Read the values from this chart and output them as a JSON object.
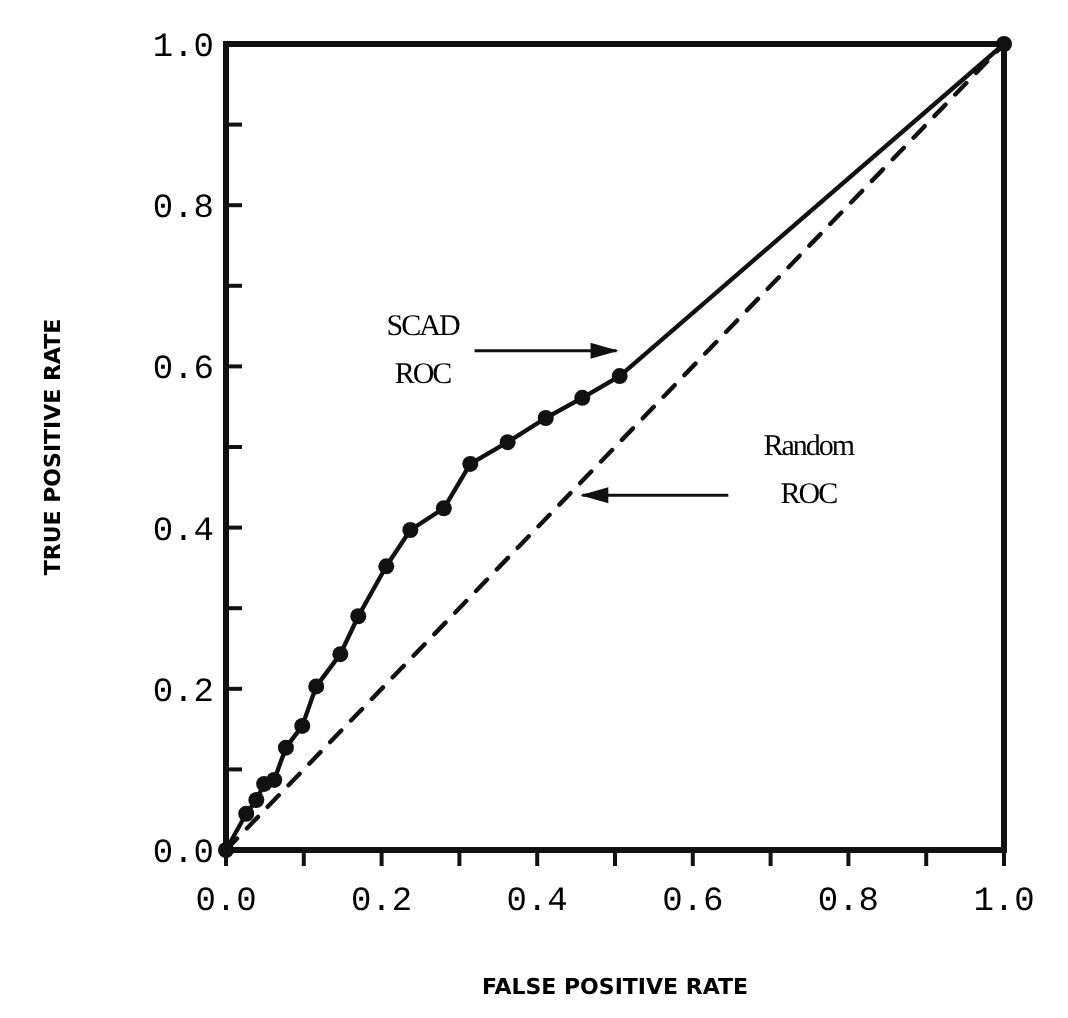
{
  "chart_data": {
    "type": "line",
    "xlabel": "FALSE POSITIVE RATE",
    "ylabel": "TRUE POSITIVE RATE",
    "xlim": [
      0,
      1
    ],
    "ylim": [
      0,
      1
    ],
    "xticks": [
      {
        "value": 0,
        "label": "0.0"
      },
      {
        "value": 0.1,
        "label": null
      },
      {
        "value": 0.2,
        "label": "0.2"
      },
      {
        "value": 0.3,
        "label": null
      },
      {
        "value": 0.4,
        "label": "0.4"
      },
      {
        "value": 0.5,
        "label": null
      },
      {
        "value": 0.6,
        "label": "0.6"
      },
      {
        "value": 0.7,
        "label": null
      },
      {
        "value": 0.8,
        "label": "0.8"
      },
      {
        "value": 0.9,
        "label": null
      },
      {
        "value": 1,
        "label": "1.0"
      }
    ],
    "yticks": [
      {
        "value": 0,
        "label": "0.0"
      },
      {
        "value": 0.1,
        "label": null
      },
      {
        "value": 0.2,
        "label": "0.2"
      },
      {
        "value": 0.3,
        "label": null
      },
      {
        "value": 0.4,
        "label": "0.4"
      },
      {
        "value": 0.5,
        "label": null
      },
      {
        "value": 0.6,
        "label": "0.6"
      },
      {
        "value": 0.7,
        "label": null
      },
      {
        "value": 0.8,
        "label": "0.8"
      },
      {
        "value": 0.9,
        "label": null
      },
      {
        "value": 1,
        "label": "1.0"
      }
    ],
    "series": [
      {
        "color": "#111111",
        "marker": "circle",
        "line_style": "solid",
        "x": [
          0,
          0.026,
          0.039,
          0.049,
          0.062,
          0.077,
          0.098,
          0.116,
          0.147,
          0.17,
          0.206,
          0.237,
          0.28,
          0.314,
          0.362,
          0.411,
          0.458,
          0.506,
          1
        ],
        "values": [
          0,
          0.045,
          0.062,
          0.082,
          0.087,
          0.127,
          0.154,
          0.203,
          0.243,
          0.29,
          0.352,
          0.397,
          0.424,
          0.479,
          0.506,
          0.536,
          0.561,
          0.588,
          1
        ]
      },
      {
        "color": "#111111",
        "marker": "none",
        "line_style": "dashed",
        "x": [
          0,
          1
        ],
        "values": [
          0,
          1
        ]
      }
    ],
    "annotations": [
      "SCAD ROC",
      "Random ROC"
    ]
  }
}
